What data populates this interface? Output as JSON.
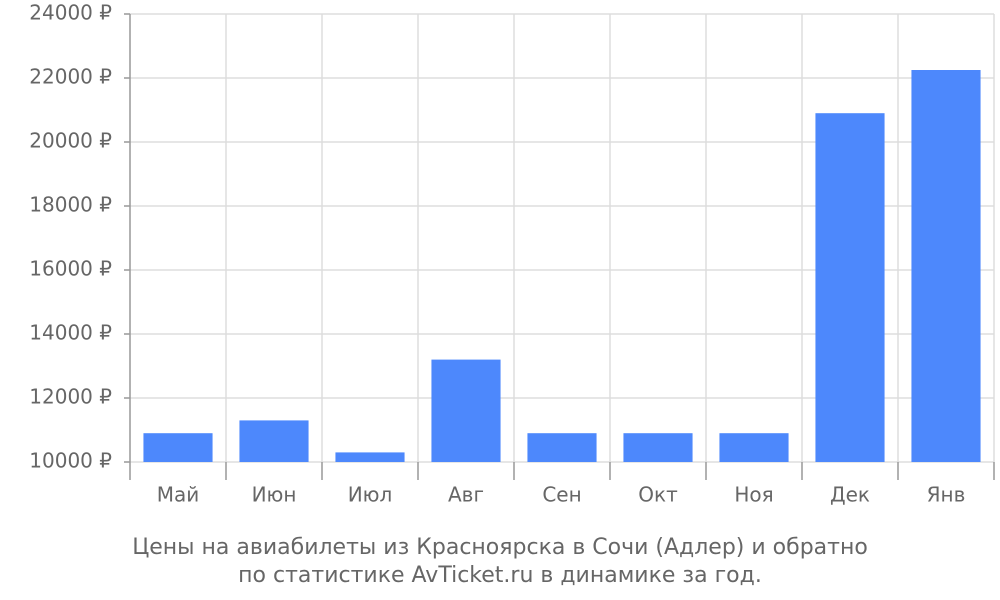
{
  "chart_data": {
    "type": "bar",
    "title": "Цены на авиабилеты из Красноярска в Сочи (Адлер) и обратно",
    "subtitle": "по статистике AvTicket.ru в динамике за год.",
    "categories": [
      "Май",
      "Июн",
      "Июл",
      "Авг",
      "Сен",
      "Окт",
      "Ноя",
      "Дек",
      "Янв"
    ],
    "values": [
      10900,
      11300,
      10300,
      13200,
      10900,
      10900,
      10900,
      20900,
      22250
    ],
    "color": "#4d88fc",
    "ylim": [
      10000,
      24000
    ],
    "yticks": [
      {
        "value": 10000,
        "label": "10000 ₽"
      },
      {
        "value": 12000,
        "label": "12000 ₽"
      },
      {
        "value": 14000,
        "label": "14000 ₽"
      },
      {
        "value": 16000,
        "label": "16000 ₽"
      },
      {
        "value": 18000,
        "label": "18000 ₽"
      },
      {
        "value": 20000,
        "label": "20000 ₽"
      },
      {
        "value": 22000,
        "label": "22000 ₽"
      },
      {
        "value": 24000,
        "label": "24000 ₽"
      }
    ],
    "grid": true
  }
}
